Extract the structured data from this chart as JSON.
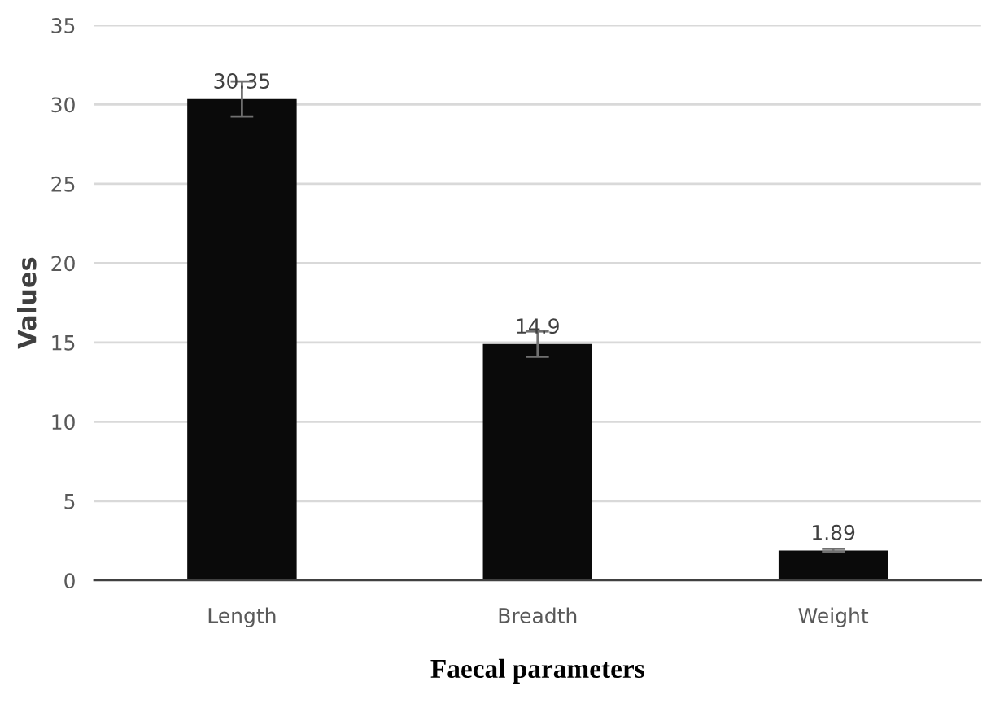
{
  "chart_data": {
    "type": "bar",
    "xlabel": "Faecal parameters",
    "ylabel": "Values",
    "categories": [
      "Length",
      "Breadth",
      "Weight"
    ],
    "values": [
      30.35,
      14.9,
      1.89
    ],
    "errors": [
      1.1,
      0.8,
      0.1
    ],
    "color": "#0a0a0a",
    "data_labels": true,
    "ylim": [
      0,
      35
    ],
    "yticks": [
      0,
      5,
      10,
      15,
      20,
      25,
      30,
      35
    ],
    "grid": "y",
    "legend": false
  }
}
